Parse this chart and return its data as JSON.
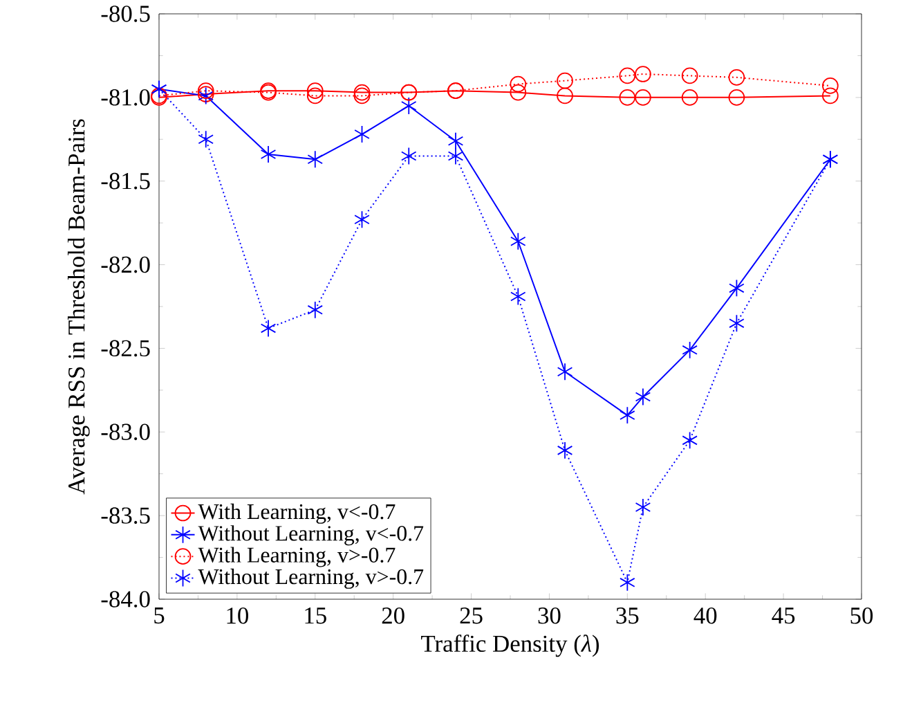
{
  "chart_data": {
    "type": "line",
    "xlabel": "Traffic Density (*λ*)",
    "ylabel": "Average RSS in Threshold Beam-Pairs",
    "x": [
      5,
      8,
      12,
      15,
      18,
      21,
      24,
      28,
      31,
      35,
      36,
      39,
      42,
      48
    ],
    "series": [
      {
        "name": "With Learning, v<-0.7",
        "color": "#ff0000",
        "marker": "circle",
        "line_style": "solid",
        "values": [
          -81.0,
          -80.98,
          -80.96,
          -80.96,
          -80.97,
          -80.97,
          -80.96,
          -80.97,
          -80.99,
          -81.0,
          -81.0,
          -81.0,
          -81.0,
          -80.99
        ]
      },
      {
        "name": "Without Learning, v<-0.7",
        "color": "#0000ff",
        "marker": "cross",
        "line_style": "solid",
        "values": [
          -80.95,
          -80.99,
          -81.34,
          -81.37,
          -81.22,
          -81.05,
          -81.26,
          -81.86,
          -82.64,
          -82.9,
          -82.79,
          -82.51,
          -82.14,
          -81.37
        ]
      },
      {
        "name": "With Learning, v>-0.7",
        "color": "#ff0000",
        "marker": "circle",
        "line_style": "dotted",
        "values": [
          -80.99,
          -80.96,
          -80.97,
          -80.99,
          -80.99,
          -80.97,
          -80.96,
          -80.92,
          -80.9,
          -80.87,
          -80.86,
          -80.87,
          -80.88,
          -80.93
        ]
      },
      {
        "name": "Without Learning, v>-0.7",
        "color": "#0000ff",
        "marker": "cross",
        "line_style": "dotted",
        "values": [
          -80.95,
          -81.25,
          -82.38,
          -82.27,
          -81.73,
          -81.35,
          -81.35,
          -82.19,
          -83.11,
          -83.9,
          -83.45,
          -83.05,
          -82.35,
          -81.37
        ]
      }
    ],
    "xlim": [
      5,
      50
    ],
    "xticks": [
      5,
      10,
      15,
      20,
      25,
      30,
      35,
      40,
      45,
      50
    ],
    "ylim": [
      -84,
      -80.5
    ],
    "yticks": [
      {
        "value": -84,
        "label": "-84.0"
      },
      {
        "value": -83.5,
        "label": "-83.5"
      },
      {
        "value": -83,
        "label": "-83.0"
      },
      {
        "value": -82.5,
        "label": "-82.5"
      },
      {
        "value": -82,
        "label": "-82.0"
      },
      {
        "value": -81.5,
        "label": "-81.5"
      },
      {
        "value": -81,
        "label": "-81.0"
      },
      {
        "value": -80.5,
        "label": "-80.5"
      }
    ],
    "grid": false,
    "legend": "bottom left"
  }
}
